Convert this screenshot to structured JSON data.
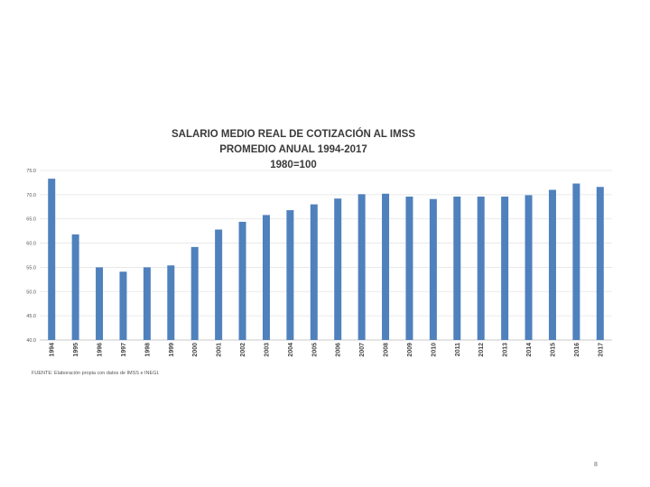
{
  "chart_data": {
    "type": "bar",
    "title": [
      "SALARIO MEDIO REAL DE COTIZACIÓN AL IMSS",
      "PROMEDIO ANUAL 1994-2017",
      "1980=100"
    ],
    "categories": [
      "1994",
      "1995",
      "1996",
      "1997",
      "1998",
      "1999",
      "2000",
      "2001",
      "2002",
      "2003",
      "2004",
      "2005",
      "2006",
      "2007",
      "2008",
      "2009",
      "2010",
      "2011",
      "2012",
      "2013",
      "2014",
      "2015",
      "2016",
      "2017"
    ],
    "values": [
      73.3,
      61.8,
      55.0,
      54.1,
      55.0,
      55.4,
      59.2,
      62.8,
      64.4,
      65.8,
      66.8,
      68.0,
      69.2,
      70.1,
      70.2,
      69.6,
      69.1,
      69.6,
      69.6,
      69.6,
      69.9,
      71.0,
      72.3,
      71.6
    ],
    "ylim": [
      40,
      75
    ],
    "yticks": [
      "75.0",
      "70.0",
      "65.0",
      "60.0",
      "55.0",
      "50.0",
      "45.0",
      "40.0"
    ],
    "ytick_values": [
      75,
      70,
      65,
      60,
      55,
      50,
      45,
      40
    ],
    "xlabel": "",
    "ylabel": "",
    "bar_color": "#4f81bd",
    "grid": true
  },
  "source_note": "FUENTE: Elaboración propia con datos de IMSS e INEGI.",
  "page_number": "8"
}
